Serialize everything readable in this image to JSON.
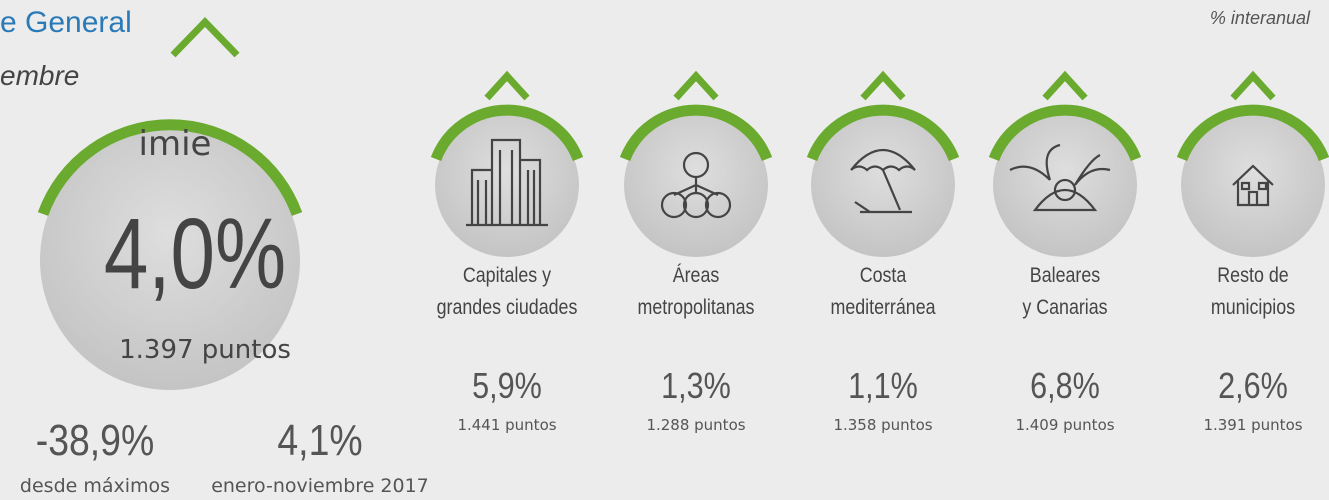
{
  "header": {
    "title": "e General",
    "subtitle": "embre",
    "note": "% interanual"
  },
  "main": {
    "logo": "imie",
    "value": "4,0%",
    "points": "1.397 puntos"
  },
  "stats": [
    {
      "value": "-38,9%",
      "label": "desde máximos"
    },
    {
      "value": "4,1%",
      "label": "enero-noviembre 2017"
    }
  ],
  "regions": [
    {
      "label": [
        "Capitales y",
        "grandes ciudades"
      ],
      "value": "5,9%",
      "points": "1.441 puntos"
    },
    {
      "label": [
        "Áreas",
        "metropolitanas"
      ],
      "value": "1,3%",
      "points": "1.288 puntos"
    },
    {
      "label": [
        "Costa",
        "mediterránea"
      ],
      "value": "1,1%",
      "points": "1.358 puntos"
    },
    {
      "label": [
        "Baleares",
        "y Canarias"
      ],
      "value": "6,8%",
      "points": "1.409 puntos"
    },
    {
      "label": [
        "Resto de",
        "municipios"
      ],
      "value": "2,6%",
      "points": "1.391 puntos"
    }
  ]
}
